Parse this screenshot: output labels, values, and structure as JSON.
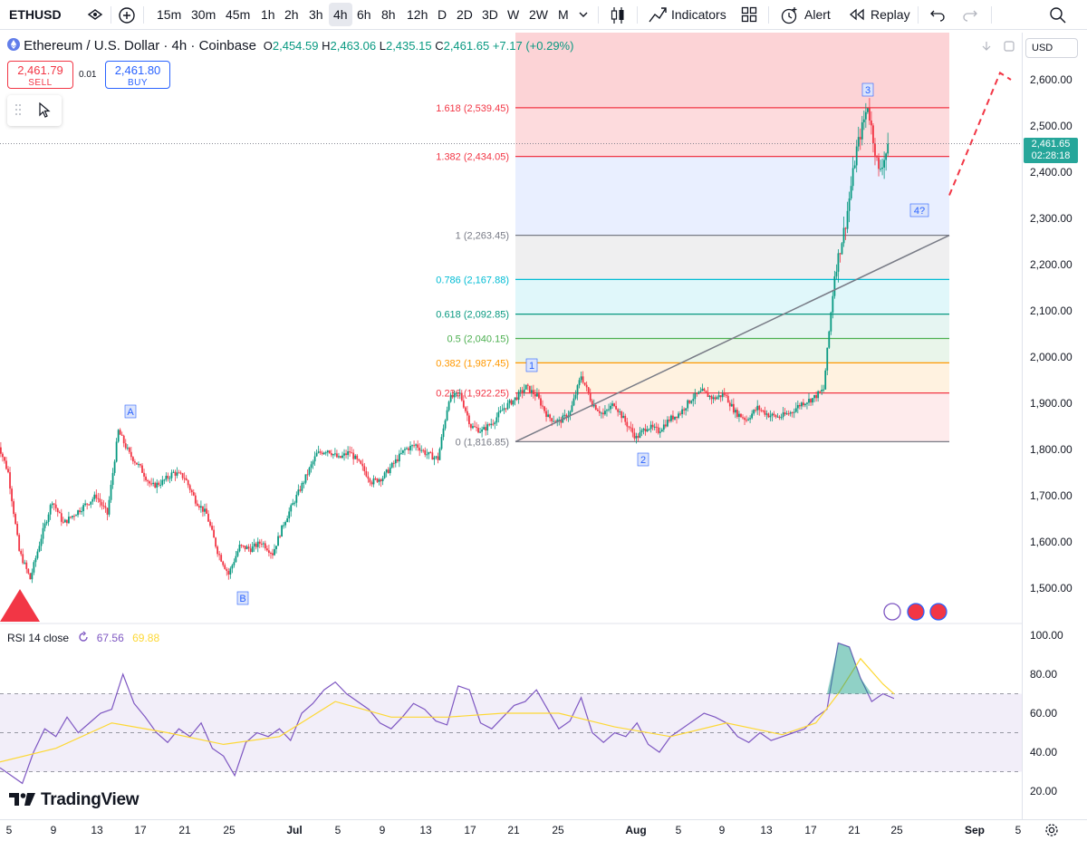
{
  "toolbar": {
    "symbol": "ETHUSD",
    "intervals": [
      "15m",
      "30m",
      "45m",
      "1h",
      "2h",
      "3h",
      "4h",
      "6h",
      "8h",
      "12h",
      "D",
      "2D",
      "3D",
      "W",
      "2W",
      "M"
    ],
    "active_interval": "4h",
    "indicators_label": "Indicators",
    "alert_label": "Alert",
    "replay_label": "Replay"
  },
  "legend": {
    "title": "Ethereum / U.S. Dollar · 4h · Coinbase",
    "open_label": "O",
    "open": "2,454.59",
    "high_label": "H",
    "high": "2,463.06",
    "low_label": "L",
    "low": "2,435.15",
    "close_label": "C",
    "close": "2,461.65",
    "change": "+7.17 (+0.29%)"
  },
  "trade": {
    "sell_price": "2,461.79",
    "sell_label": "SELL",
    "buy_price": "2,461.80",
    "buy_label": "BUY",
    "spread": "0.01"
  },
  "price_axis": {
    "currency": "USD",
    "current_price": "2,461.65",
    "countdown": "02:28:18",
    "ticks": [
      "2,600.00",
      "2,500.00",
      "2,400.00",
      "2,300.00",
      "2,200.00",
      "2,100.00",
      "2,000.00",
      "1,900.00",
      "1,800.00",
      "1,700.00",
      "1,600.00",
      "1,500.00"
    ]
  },
  "rsi": {
    "label": "RSI 14 close",
    "value": "67.56",
    "ma_value": "69.88",
    "ticks": [
      "100.00",
      "80.00",
      "60.00",
      "40.00",
      "20.00"
    ]
  },
  "time_axis": {
    "labels": [
      "5",
      "9",
      "13",
      "17",
      "21",
      "25",
      "Jul",
      "5",
      "9",
      "13",
      "17",
      "21",
      "25",
      "Aug",
      "5",
      "9",
      "13",
      "17",
      "21",
      "25",
      "Sep",
      "5"
    ]
  },
  "brand": "TradingView",
  "colors": {
    "up": "#089981",
    "down": "#f23645",
    "accent": "#2962ff",
    "current_price_bg": "#26a69a",
    "rsi_line": "#7e57c2",
    "rsi_ma": "#fdd835"
  },
  "chart_data": {
    "type": "candlestick",
    "symbol": "ETHUSD",
    "timeframe": "4h",
    "ylim": [
      1470,
      2660
    ],
    "fib_levels": [
      {
        "label": "1.618 (2,539.45)",
        "value": 2539.45,
        "color": "#f23645"
      },
      {
        "label": "1.382 (2,434.05)",
        "value": 2434.05,
        "color": "#f23645"
      },
      {
        "label": "1 (2,263.45)",
        "value": 2263.45,
        "color": "#787b86"
      },
      {
        "label": "0.786 (2,167.88)",
        "value": 2167.88,
        "color": "#00bcd4"
      },
      {
        "label": "0.618 (2,092.85)",
        "value": 2092.85,
        "color": "#089981"
      },
      {
        "label": "0.5 (2,040.15)",
        "value": 2040.15,
        "color": "#4caf50"
      },
      {
        "label": "0.382 (1,987.45)",
        "value": 1987.45,
        "color": "#ff9800"
      },
      {
        "label": "0.236 (1,922.25)",
        "value": 1922.25,
        "color": "#f23645"
      },
      {
        "label": "0 (1,816.85)",
        "value": 1816.85,
        "color": "#787b86"
      }
    ],
    "wave_labels": [
      {
        "text": "A",
        "date": "Jun 16",
        "price": 1840
      },
      {
        "text": "B",
        "date": "Jun 25",
        "price": 1515
      },
      {
        "text": "1",
        "date": "Jul 21",
        "price": 1975
      },
      {
        "text": "2",
        "date": "Aug 1",
        "price": 1815
      },
      {
        "text": "3",
        "date": "Aug 22",
        "price": 2545
      },
      {
        "text": "4?",
        "date": "Aug 24",
        "price": 2290
      }
    ],
    "price_path": [
      {
        "date": "Jun 4",
        "price": 1820
      },
      {
        "date": "Jun 5",
        "price": 1750
      },
      {
        "date": "Jun 6",
        "price": 1580
      },
      {
        "date": "Jun 7",
        "price": 1520
      },
      {
        "date": "Jun 8",
        "price": 1610
      },
      {
        "date": "Jun 9",
        "price": 1690
      },
      {
        "date": "Jun 10",
        "price": 1640
      },
      {
        "date": "Jun 11",
        "price": 1660
      },
      {
        "date": "Jun 12",
        "price": 1680
      },
      {
        "date": "Jun 13",
        "price": 1700
      },
      {
        "date": "Jun 14",
        "price": 1660
      },
      {
        "date": "Jun 15",
        "price": 1840
      },
      {
        "date": "Jun 16",
        "price": 1790
      },
      {
        "date": "Jun 17",
        "price": 1760
      },
      {
        "date": "Jun 18",
        "price": 1720
      },
      {
        "date": "Jun 19",
        "price": 1730
      },
      {
        "date": "Jun 20",
        "price": 1750
      },
      {
        "date": "Jun 21",
        "price": 1740
      },
      {
        "date": "Jun 22",
        "price": 1690
      },
      {
        "date": "Jun 23",
        "price": 1660
      },
      {
        "date": "Jun 24",
        "price": 1580
      },
      {
        "date": "Jun 25",
        "price": 1530
      },
      {
        "date": "Jun 26",
        "price": 1590
      },
      {
        "date": "Jun 27",
        "price": 1585
      },
      {
        "date": "Jun 28",
        "price": 1600
      },
      {
        "date": "Jun 29",
        "price": 1575
      },
      {
        "date": "Jun 30",
        "price": 1640
      },
      {
        "date": "Jul 1",
        "price": 1690
      },
      {
        "date": "Jul 2",
        "price": 1740
      },
      {
        "date": "Jul 3",
        "price": 1790
      },
      {
        "date": "Jul 4",
        "price": 1800
      },
      {
        "date": "Jul 5",
        "price": 1780
      },
      {
        "date": "Jul 6",
        "price": 1795
      },
      {
        "date": "Jul 7",
        "price": 1765
      },
      {
        "date": "Jul 8",
        "price": 1730
      },
      {
        "date": "Jul 9",
        "price": 1740
      },
      {
        "date": "Jul 10",
        "price": 1770
      },
      {
        "date": "Jul 11",
        "price": 1800
      },
      {
        "date": "Jul 12",
        "price": 1810
      },
      {
        "date": "Jul 13",
        "price": 1790
      },
      {
        "date": "Jul 14",
        "price": 1780
      },
      {
        "date": "Jul 15",
        "price": 1910
      },
      {
        "date": "Jul 16",
        "price": 1920
      },
      {
        "date": "Jul 17",
        "price": 1850
      },
      {
        "date": "Jul 18",
        "price": 1840
      },
      {
        "date": "Jul 19",
        "price": 1860
      },
      {
        "date": "Jul 20",
        "price": 1890
      },
      {
        "date": "Jul 21",
        "price": 1910
      },
      {
        "date": "Jul 22",
        "price": 1935
      },
      {
        "date": "Jul 23",
        "price": 1915
      },
      {
        "date": "Jul 24",
        "price": 1870
      },
      {
        "date": "Jul 25",
        "price": 1860
      },
      {
        "date": "Jul 26",
        "price": 1880
      },
      {
        "date": "Jul 27",
        "price": 1960
      },
      {
        "date": "Jul 28",
        "price": 1900
      },
      {
        "date": "Jul 29",
        "price": 1875
      },
      {
        "date": "Jul 30",
        "price": 1900
      },
      {
        "date": "Jul 31",
        "price": 1860
      },
      {
        "date": "Aug 1",
        "price": 1825
      },
      {
        "date": "Aug 2",
        "price": 1850
      },
      {
        "date": "Aug 3",
        "price": 1840
      },
      {
        "date": "Aug 4",
        "price": 1865
      },
      {
        "date": "Aug 5",
        "price": 1880
      },
      {
        "date": "Aug 6",
        "price": 1910
      },
      {
        "date": "Aug 7",
        "price": 1925
      },
      {
        "date": "Aug 8",
        "price": 1910
      },
      {
        "date": "Aug 9",
        "price": 1920
      },
      {
        "date": "Aug 10",
        "price": 1880
      },
      {
        "date": "Aug 11",
        "price": 1865
      },
      {
        "date": "Aug 12",
        "price": 1890
      },
      {
        "date": "Aug 13",
        "price": 1875
      },
      {
        "date": "Aug 14",
        "price": 1870
      },
      {
        "date": "Aug 15",
        "price": 1880
      },
      {
        "date": "Aug 16",
        "price": 1900
      },
      {
        "date": "Aug 17",
        "price": 1910
      },
      {
        "date": "Aug 18",
        "price": 1930
      },
      {
        "date": "Aug 19",
        "price": 2180
      },
      {
        "date": "Aug 20",
        "price": 2290
      },
      {
        "date": "Aug 21",
        "price": 2450
      },
      {
        "date": "Aug 22",
        "price": 2545
      },
      {
        "date": "Aug 23",
        "price": 2400
      },
      {
        "date": "Aug 24",
        "price": 2461.65
      }
    ],
    "rsi_ylim": [
      10,
      105
    ],
    "rsi_bands": [
      30,
      50,
      70
    ],
    "rsi_path": [
      [
        0,
        32
      ],
      [
        1,
        28
      ],
      [
        2,
        24
      ],
      [
        3,
        40
      ],
      [
        4,
        52
      ],
      [
        5,
        48
      ],
      [
        6,
        58
      ],
      [
        7,
        50
      ],
      [
        8,
        55
      ],
      [
        9,
        60
      ],
      [
        10,
        62
      ],
      [
        11,
        80
      ],
      [
        12,
        65
      ],
      [
        13,
        58
      ],
      [
        14,
        50
      ],
      [
        15,
        45
      ],
      [
        16,
        52
      ],
      [
        17,
        48
      ],
      [
        18,
        55
      ],
      [
        19,
        42
      ],
      [
        20,
        38
      ],
      [
        21,
        28
      ],
      [
        22,
        45
      ],
      [
        23,
        50
      ],
      [
        24,
        48
      ],
      [
        25,
        52
      ],
      [
        26,
        46
      ],
      [
        27,
        60
      ],
      [
        28,
        65
      ],
      [
        29,
        72
      ],
      [
        30,
        76
      ],
      [
        31,
        70
      ],
      [
        32,
        66
      ],
      [
        33,
        62
      ],
      [
        34,
        55
      ],
      [
        35,
        52
      ],
      [
        36,
        58
      ],
      [
        37,
        65
      ],
      [
        38,
        62
      ],
      [
        39,
        56
      ],
      [
        40,
        54
      ],
      [
        41,
        74
      ],
      [
        42,
        72
      ],
      [
        43,
        55
      ],
      [
        44,
        52
      ],
      [
        45,
        58
      ],
      [
        46,
        64
      ],
      [
        47,
        66
      ],
      [
        48,
        72
      ],
      [
        49,
        62
      ],
      [
        50,
        52
      ],
      [
        51,
        56
      ],
      [
        52,
        68
      ],
      [
        53,
        50
      ],
      [
        54,
        45
      ],
      [
        55,
        50
      ],
      [
        56,
        48
      ],
      [
        57,
        55
      ],
      [
        58,
        44
      ],
      [
        59,
        40
      ],
      [
        60,
        48
      ],
      [
        61,
        52
      ],
      [
        62,
        56
      ],
      [
        63,
        60
      ],
      [
        64,
        58
      ],
      [
        65,
        55
      ],
      [
        66,
        48
      ],
      [
        67,
        45
      ],
      [
        68,
        50
      ],
      [
        69,
        46
      ],
      [
        70,
        48
      ],
      [
        71,
        50
      ],
      [
        72,
        52
      ],
      [
        73,
        58
      ],
      [
        74,
        62
      ],
      [
        75,
        96
      ],
      [
        76,
        94
      ],
      [
        77,
        78
      ],
      [
        78,
        66
      ],
      [
        79,
        70
      ],
      [
        80,
        67.56
      ]
    ],
    "rsi_ma_path": [
      [
        0,
        35
      ],
      [
        5,
        42
      ],
      [
        10,
        55
      ],
      [
        15,
        50
      ],
      [
        20,
        44
      ],
      [
        25,
        48
      ],
      [
        30,
        66
      ],
      [
        35,
        58
      ],
      [
        40,
        58
      ],
      [
        45,
        60
      ],
      [
        50,
        60
      ],
      [
        55,
        53
      ],
      [
        60,
        48
      ],
      [
        65,
        55
      ],
      [
        70,
        49
      ],
      [
        73,
        55
      ],
      [
        75,
        70
      ],
      [
        77,
        88
      ],
      [
        79,
        75
      ],
      [
        80,
        69.88
      ]
    ]
  }
}
